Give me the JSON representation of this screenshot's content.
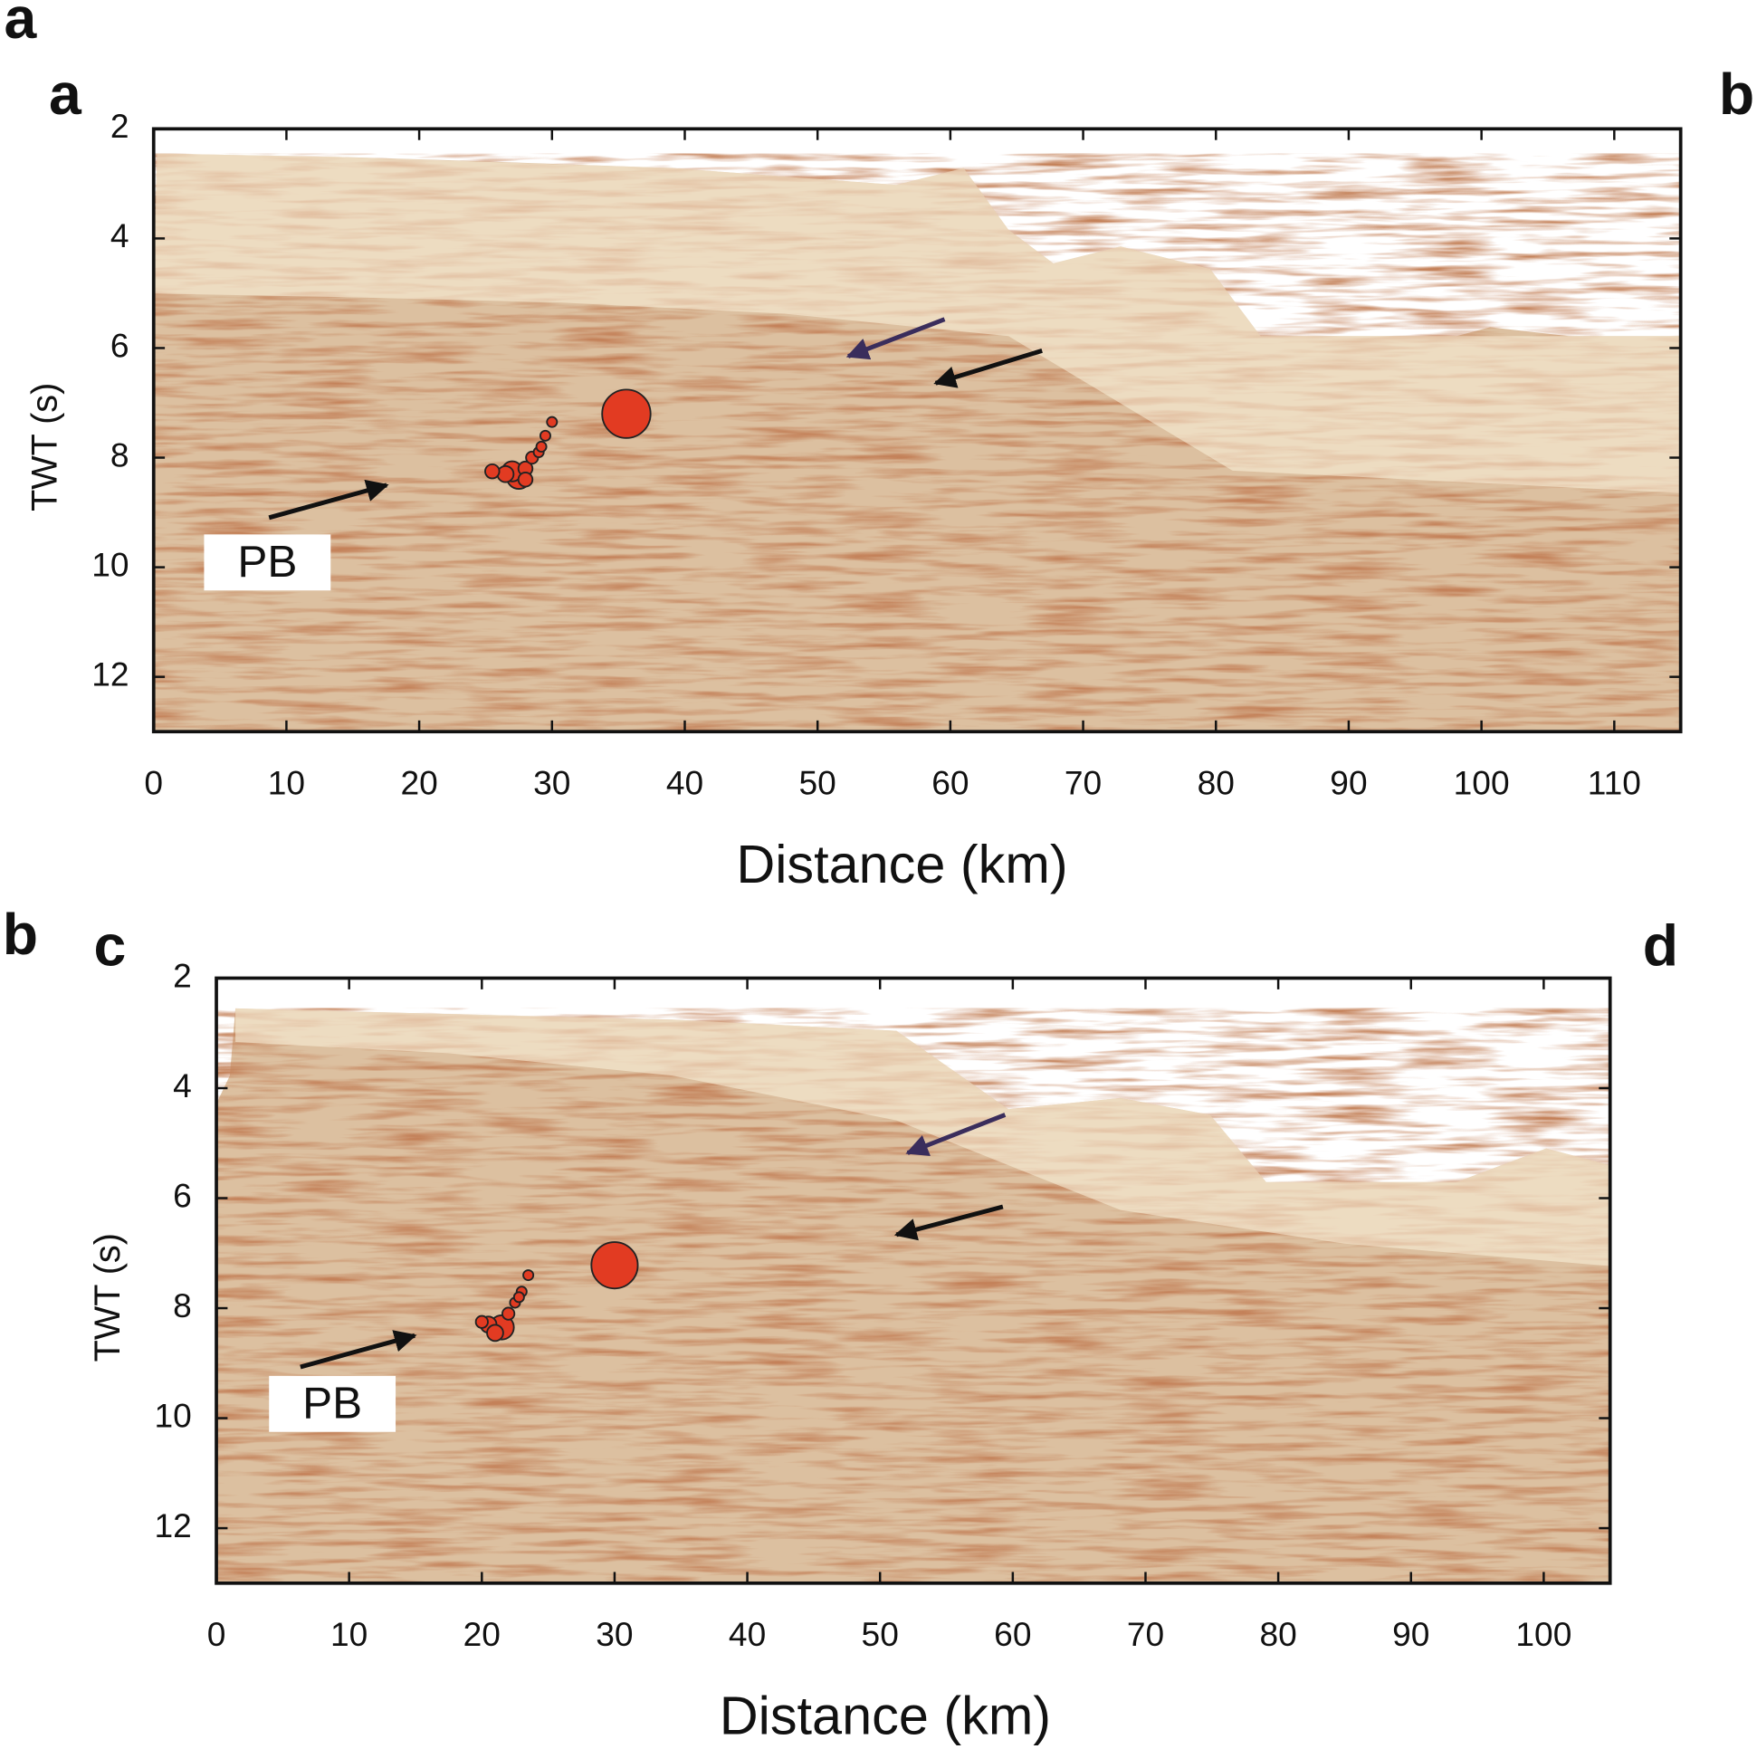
{
  "chart_data": [
    {
      "type": "scatter",
      "figure_label": "a",
      "panel_label": "a",
      "panel_label_right": "b",
      "annotation": "PB",
      "x_label": "Distance (km)",
      "y_label": "TWT (s)",
      "xlim": [
        0,
        115
      ],
      "ylim": [
        2,
        13
      ],
      "invert_y": true,
      "xticks": [
        0,
        10,
        20,
        30,
        40,
        50,
        60,
        70,
        80,
        90,
        100,
        110
      ],
      "yticks": [
        2,
        4,
        6,
        8,
        10,
        12
      ],
      "series": [
        {
          "color": "#e23b22",
          "x": [
            35.6,
            27.5,
            27,
            26.5,
            25.5,
            28,
            28.5,
            29,
            29.5,
            30,
            29.2,
            28
          ],
          "values": [
            7.2,
            8.35,
            8.25,
            8.3,
            8.25,
            8.2,
            8.0,
            7.9,
            7.6,
            7.35,
            7.8,
            8.4
          ],
          "sizes": [
            12,
            6,
            5,
            4,
            3.5,
            3.5,
            3,
            2.5,
            2.5,
            2.5,
            2.5,
            3.5
          ]
        }
      ]
    },
    {
      "type": "scatter",
      "figure_label": "b",
      "panel_label": "c",
      "panel_label_right": "d",
      "annotation": "PB",
      "x_label": "Distance (km)",
      "y_label": "TWT (s)",
      "xlim": [
        0,
        105
      ],
      "ylim": [
        2,
        13
      ],
      "invert_y": true,
      "xticks": [
        0,
        10,
        20,
        30,
        40,
        50,
        60,
        70,
        80,
        90,
        100
      ],
      "yticks": [
        2,
        4,
        6,
        8,
        10,
        12
      ],
      "series": [
        {
          "color": "#e23b22",
          "x": [
            30,
            21.5,
            20.5,
            20,
            22,
            22.5,
            23,
            23.5,
            21,
            22.8
          ],
          "values": [
            7.22,
            8.35,
            8.3,
            8.25,
            8.1,
            7.9,
            7.7,
            7.4,
            8.45,
            7.8
          ],
          "sizes": [
            11.5,
            6,
            4,
            3,
            3,
            2.5,
            2.5,
            2.5,
            4,
            2.5
          ]
        }
      ]
    }
  ]
}
